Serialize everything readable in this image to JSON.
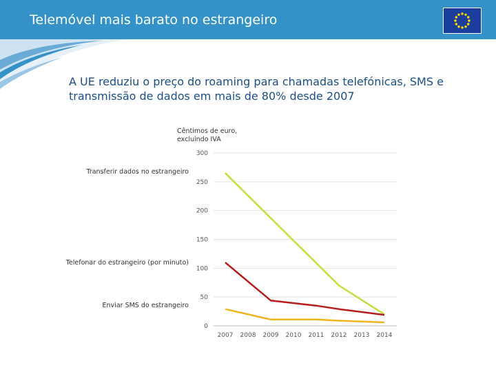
{
  "header": {
    "title": "Telemóvel mais barato no estrangeiro"
  },
  "flag_icon": "eu-flag-icon",
  "subtitle": "A UE reduziu o preço do roaming para chamadas telefónicas, SMS e transmissão de dados em mais de 80% desde 2007",
  "unit_label": "Cêntimos de euro, excluindo IVA",
  "chart_data": {
    "type": "line",
    "title": "A UE reduziu o preço do roaming para chamadas telefónicas, SMS e transmissão de dados em mais de 80% desde 2007",
    "ylabel": "Cêntimos de euro, excluindo IVA",
    "xlabel": "",
    "x": [
      "2007",
      "2008",
      "2009",
      "2010",
      "2011",
      "2012",
      "2013",
      "2014"
    ],
    "ylim": [
      0,
      300
    ],
    "yticks": [
      0,
      50,
      100,
      150,
      200,
      250,
      300
    ],
    "grid": true,
    "series": [
      {
        "name": "Transferir dados no estrangeiro",
        "color": "#c8dc3c",
        "x": [
          "2007",
          "2012",
          "2014"
        ],
        "values": [
          265,
          70,
          20
        ]
      },
      {
        "name": "Telefonar do estrangeiro (por minuto)",
        "color": "#b81c1c",
        "x": [
          "2007",
          "2009",
          "2011",
          "2012",
          "2014"
        ],
        "values": [
          110,
          44,
          35,
          29,
          19
        ]
      },
      {
        "name": "Enviar SMS do estrangeiro",
        "color": "#f0b41e",
        "x": [
          "2007",
          "2009",
          "2011",
          "2012",
          "2014"
        ],
        "values": [
          29,
          11,
          11,
          9,
          6
        ]
      }
    ]
  }
}
